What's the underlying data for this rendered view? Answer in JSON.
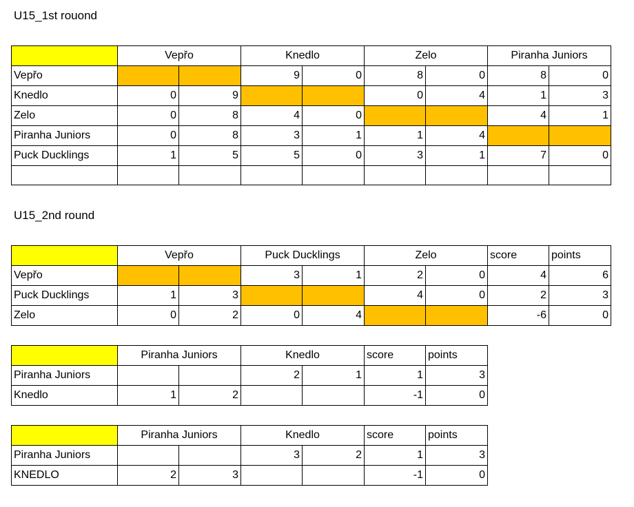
{
  "round1": {
    "title": "U15_1st rouond",
    "teams": [
      "Vepřo",
      "Knedlo",
      "Zelo",
      "Piranha Juniors"
    ],
    "rows": [
      {
        "name": "Vepřo",
        "cells": [
          "",
          "",
          "9",
          "0",
          "8",
          "0",
          "8",
          "0"
        ]
      },
      {
        "name": "Knedlo",
        "cells": [
          "0",
          "9",
          "",
          "",
          "0",
          "4",
          "1",
          "3"
        ]
      },
      {
        "name": "Zelo",
        "cells": [
          "0",
          "8",
          "4",
          "0",
          "",
          "",
          "4",
          "1"
        ]
      },
      {
        "name": "Piranha Juniors",
        "cells": [
          "0",
          "8",
          "3",
          "1",
          "1",
          "4",
          "",
          ""
        ]
      },
      {
        "name": "Puck Ducklings",
        "cells": [
          "1",
          "5",
          "5",
          "0",
          "3",
          "1",
          "7",
          "0"
        ]
      },
      {
        "name": "",
        "cells": [
          "",
          "",
          "",
          "",
          "",
          "",
          "",
          ""
        ]
      }
    ]
  },
  "round2": {
    "title": "U15_2nd round",
    "teams": [
      "Vepřo",
      "Puck Ducklings",
      "Zelo"
    ],
    "score_label": "score",
    "points_label": "points",
    "rows": [
      {
        "name": "Vepřo",
        "cells": [
          "",
          "",
          "3",
          "1",
          "2",
          "0",
          "4",
          "6"
        ]
      },
      {
        "name": "Puck Ducklings",
        "cells": [
          "1",
          "3",
          "",
          "",
          "4",
          "0",
          "2",
          "3"
        ]
      },
      {
        "name": "Zelo",
        "cells": [
          "0",
          "2",
          "0",
          "4",
          "",
          "",
          "-6",
          "0"
        ]
      }
    ]
  },
  "final1": {
    "teams": [
      "Piranha Juniors",
      "Knedlo"
    ],
    "score_label": "score",
    "points_label": "points",
    "rows": [
      {
        "name": "Piranha Juniors",
        "cells": [
          "",
          "",
          "2",
          "1",
          "1",
          "3"
        ]
      },
      {
        "name": "Knedlo",
        "cells": [
          "1",
          "2",
          "",
          "",
          "-1",
          "0"
        ]
      }
    ]
  },
  "final2": {
    "teams": [
      "Piranha Juniors",
      "Knedlo"
    ],
    "score_label": "score",
    "points_label": "points",
    "rows": [
      {
        "name": "Piranha Juniors",
        "cells": [
          "",
          "",
          "3",
          "2",
          "1",
          "3"
        ]
      },
      {
        "name": "KNEDLO",
        "cells": [
          "2",
          "3",
          "",
          "",
          "-1",
          "0"
        ]
      }
    ]
  },
  "colors": {
    "corner_fill": "#ffff00",
    "self_match_fill": "#ffc000"
  }
}
